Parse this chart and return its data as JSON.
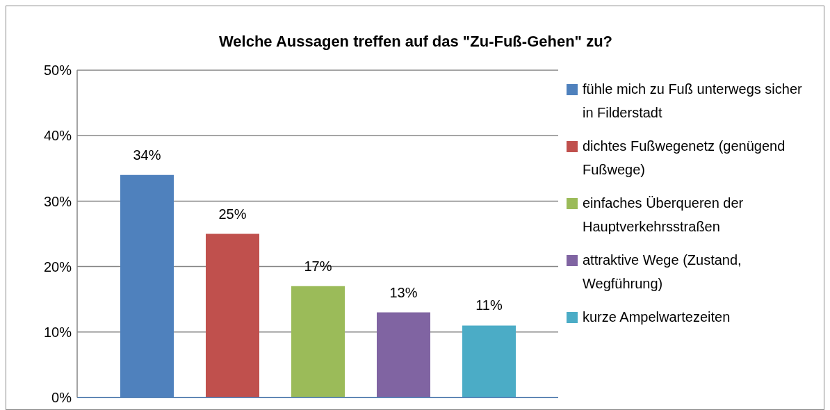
{
  "chart_data": {
    "type": "bar",
    "title": "Welche Aussagen treffen auf das \"Zu-Fuß-Gehen\" zu?",
    "categories": [
      null
    ],
    "series": [
      {
        "name": "fühle mich zu Fuß unterwegs sicher in Filderstadt",
        "color": "#4f81bd",
        "values": [
          34
        ],
        "value_labels": [
          "34%"
        ]
      },
      {
        "name": "dichtes Fußwegenetz (genügend Fußwege)",
        "color": "#c0504d",
        "values": [
          25
        ],
        "value_labels": [
          "25%"
        ]
      },
      {
        "name": "einfaches Überqueren der Hauptverkehrsstraßen",
        "color": "#9bbb59",
        "values": [
          17
        ],
        "value_labels": [
          "17%"
        ]
      },
      {
        "name": "attraktive Wege (Zustand, Wegführung)",
        "color": "#8064a2",
        "values": [
          13
        ],
        "value_labels": [
          "13%"
        ]
      },
      {
        "name": "kurze Ampelwartezeiten",
        "color": "#4bacc6",
        "values": [
          11
        ],
        "value_labels": [
          "11%"
        ]
      }
    ],
    "ylim": [
      0,
      50
    ],
    "yticks": [
      {
        "value": 0,
        "label": "0%"
      },
      {
        "value": 10,
        "label": "10%"
      },
      {
        "value": 20,
        "label": "20%"
      },
      {
        "value": 30,
        "label": "30%"
      },
      {
        "value": 40,
        "label": "40%"
      },
      {
        "value": 50,
        "label": "50%"
      }
    ],
    "grid": "y",
    "legend": "right"
  }
}
